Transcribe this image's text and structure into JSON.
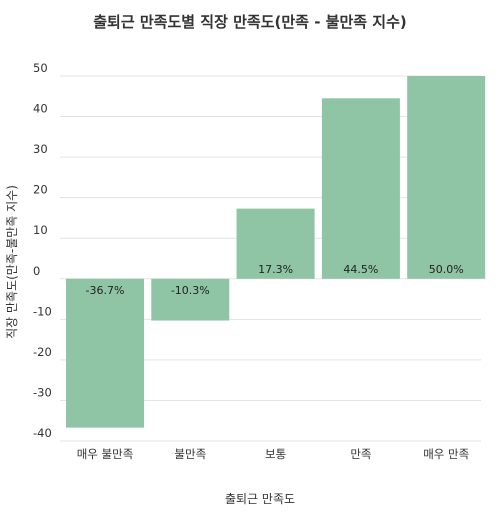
{
  "chart_data": {
    "type": "bar",
    "title": "출퇴근 만족도별 직장 만족도(만족 - 불만족 지수)",
    "xlabel": "출퇴근 만족도",
    "ylabel": "직장 만족도(만족-불만족 지수)",
    "categories": [
      "매우 불만족",
      "불만족",
      "보통",
      "만족",
      "매우 만족"
    ],
    "values": [
      -36.7,
      -10.3,
      17.3,
      44.5,
      50.0
    ],
    "data_labels": [
      "-36.7%",
      "-10.3%",
      "17.3%",
      "44.5%",
      "50.0%"
    ],
    "yticks": [
      -40,
      -30,
      -20,
      -10,
      0,
      10,
      20,
      30,
      40,
      50
    ],
    "ylim": [
      -40,
      50
    ],
    "grid": true,
    "bar_color": "#8fc4a5"
  }
}
